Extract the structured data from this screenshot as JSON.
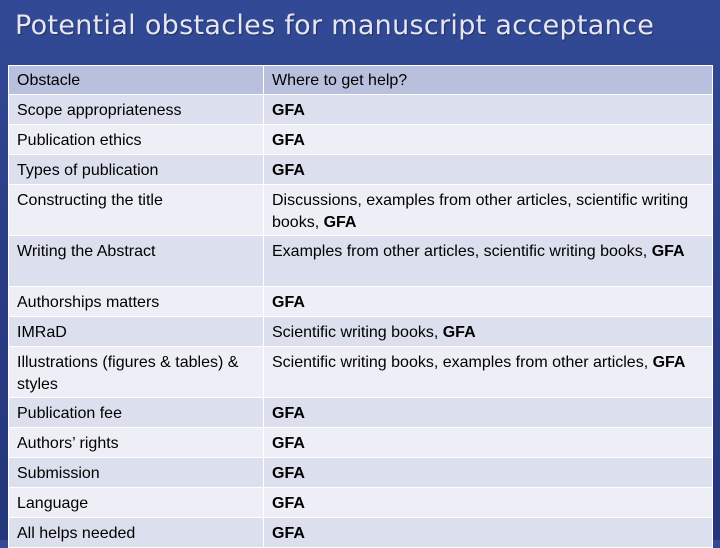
{
  "title": "Potential obstacles for manuscript acceptance",
  "table": {
    "headers": [
      "Obstacle",
      "Where to get help?"
    ],
    "rows": [
      {
        "obstacle": "Scope appropriateness",
        "help_text": "",
        "help_bold": "GFA"
      },
      {
        "obstacle": "Publication ethics",
        "help_text": "",
        "help_bold": "GFA"
      },
      {
        "obstacle": "Types of publication",
        "help_text": "",
        "help_bold": "GFA"
      },
      {
        "obstacle": "Constructing the title",
        "help_text": "Discussions, examples from other articles, scientific writing books, ",
        "help_bold": "GFA"
      },
      {
        "obstacle": "Writing the Abstract",
        "help_text": "Examples from other articles, scientific writing books, ",
        "help_bold": "GFA"
      },
      {
        "obstacle": "Authorships matters",
        "help_text": "",
        "help_bold": "GFA"
      },
      {
        "obstacle": "IMRaD",
        "help_text": "Scientific writing books, ",
        "help_bold": "GFA"
      },
      {
        "obstacle": "Illustrations (figures & tables) & styles",
        "help_text": "Scientific writing books, examples from other articles, ",
        "help_bold": "GFA"
      },
      {
        "obstacle": "Publication fee",
        "help_text": "",
        "help_bold": "GFA"
      },
      {
        "obstacle": "Authors’ rights",
        "help_text": "",
        "help_bold": "GFA"
      },
      {
        "obstacle": "Submission",
        "help_text": "",
        "help_bold": "GFA"
      },
      {
        "obstacle": "Language",
        "help_text": "",
        "help_bold": "GFA"
      },
      {
        "obstacle": "All helps needed",
        "help_text": "",
        "help_bold": "GFA"
      }
    ]
  }
}
